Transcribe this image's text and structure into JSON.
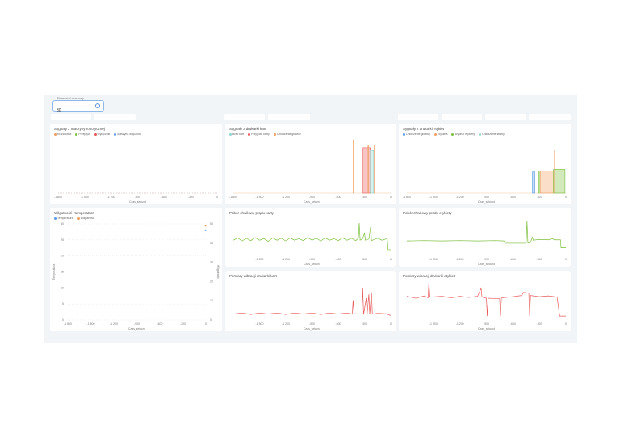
{
  "filter": {
    "label": "Przedział czasowy",
    "value": "30"
  },
  "colors": {
    "orange": "#f0a060",
    "green": "#7cbf3c",
    "red": "#e85a5a",
    "blue": "#5b9be6",
    "teal": "#8fd6d0"
  },
  "chart_data": [
    {
      "id": "c1",
      "type": "area",
      "title": "Sygnały z maszyny robotycznej",
      "xlabel": "Czas_sekund",
      "xlim": [
        -1800,
        0
      ],
      "ylim": [
        0,
        1
      ],
      "legend": [
        {
          "name": "Krańcówka",
          "color": "#f0a060"
        },
        {
          "name": "Przepływ",
          "color": "#7cbf3c"
        },
        {
          "name": "Wyłącznik",
          "color": "#e85a5a"
        },
        {
          "name": "Maszyna włączona",
          "color": "#5b9be6"
        }
      ],
      "intervals": []
    },
    {
      "id": "c2",
      "type": "area",
      "title": "Sygnały z drukarki kart",
      "xlabel": "Czas_sekund",
      "xlim": [
        -1800,
        0
      ],
      "ylim": [
        0,
        1
      ],
      "legend": [
        {
          "name": "Brak kart",
          "color": "#8fd6d0"
        },
        {
          "name": "Przyjęcie karty",
          "color": "#e85a5a"
        },
        {
          "name": "Chłodzenie głowicy",
          "color": "#f0a060"
        }
      ],
      "intervals": [
        {
          "series": 2,
          "start": -430,
          "end": -425,
          "value": 1
        },
        {
          "series": 1,
          "start": -317,
          "end": -233,
          "value": 0.85
        },
        {
          "series": 0,
          "start": -233,
          "end": -196,
          "value": 0.8
        },
        {
          "series": 2,
          "start": -260,
          "end": -256,
          "value": 0.9
        },
        {
          "series": 2,
          "start": -190,
          "end": -186,
          "value": 0.9
        }
      ]
    },
    {
      "id": "c3",
      "type": "area",
      "title": "Sygnały z drukarki etykiet",
      "xlabel": "Czas_sekund",
      "xlim": [
        -1800,
        0
      ],
      "ylim": [
        0,
        1
      ],
      "legend": [
        {
          "name": "Chłodzenie głowicy",
          "color": "#5b9be6"
        },
        {
          "name": "Etykieta",
          "color": "#f0a060"
        },
        {
          "name": "Wydruk etykiety",
          "color": "#7cbf3c"
        },
        {
          "name": "Chłodzenie taśmy",
          "color": "#8fd6d0"
        }
      ],
      "intervals": [
        {
          "series": 0,
          "start": -379,
          "end": -351,
          "value": 0.4
        },
        {
          "series": 2,
          "start": -310,
          "end": -300,
          "value": 0.4
        },
        {
          "series": 1,
          "start": -290,
          "end": -140,
          "value": 0.42
        },
        {
          "series": 2,
          "start": -140,
          "end": -10,
          "value": 0.45
        },
        {
          "series": 1,
          "start": -130,
          "end": -126,
          "value": 0.8
        }
      ]
    },
    {
      "id": "c4",
      "type": "scatter",
      "title": "Wilgotność i temperatura",
      "xlabel": "Czas_sekund",
      "ylabel": "Temperatura",
      "y2label": "Wilgotność",
      "xlim": [
        -1800,
        0
      ],
      "ylim": [
        0,
        30
      ],
      "y2lim": [
        0,
        50
      ],
      "yticks": [
        "0",
        "5",
        "10",
        "15",
        "20",
        "25",
        "30"
      ],
      "y2ticks": [
        "0",
        "10",
        "20",
        "30",
        "40",
        "50"
      ],
      "legend": [
        {
          "name": "Temperatura",
          "color": "#5b9be6"
        },
        {
          "name": "Wilgotność",
          "color": "#f0a060"
        }
      ],
      "points": [
        {
          "series": 0,
          "x": -5,
          "y": 28
        },
        {
          "series": 1,
          "x": -5,
          "y": 49
        }
      ]
    },
    {
      "id": "c5",
      "type": "line",
      "title": "Pobór chwilowy prądu karty",
      "xlabel": "Czas_sekund",
      "xlim": [
        -1800,
        0
      ],
      "ylim": [
        0,
        10
      ],
      "color": "#7cbf3c",
      "points": [
        [
          -1800,
          4
        ],
        [
          -1750,
          4.6
        ],
        [
          -1700,
          3.8
        ],
        [
          -1650,
          4.5
        ],
        [
          -1600,
          3.9
        ],
        [
          -1550,
          4.7
        ],
        [
          -1500,
          4
        ],
        [
          -1450,
          4.4
        ],
        [
          -1400,
          3.7
        ],
        [
          -1350,
          4.6
        ],
        [
          -1300,
          4
        ],
        [
          -1250,
          4.5
        ],
        [
          -1200,
          3.8
        ],
        [
          -1150,
          4.6
        ],
        [
          -1100,
          4
        ],
        [
          -1050,
          4.4
        ],
        [
          -1000,
          3.9
        ],
        [
          -950,
          4.7
        ],
        [
          -900,
          4
        ],
        [
          -850,
          4.5
        ],
        [
          -800,
          3.8
        ],
        [
          -750,
          4.6
        ],
        [
          -700,
          4
        ],
        [
          -650,
          4.4
        ],
        [
          -600,
          3.9
        ],
        [
          -550,
          4.6
        ],
        [
          -500,
          4
        ],
        [
          -450,
          4.5
        ],
        [
          -400,
          3.9
        ],
        [
          -370,
          4.5
        ],
        [
          -360,
          8.5
        ],
        [
          -350,
          4
        ],
        [
          -320,
          4.4
        ],
        [
          -300,
          6
        ],
        [
          -290,
          4
        ],
        [
          -250,
          4.3
        ],
        [
          -230,
          7.5
        ],
        [
          -220,
          3.9
        ],
        [
          -150,
          4.5
        ],
        [
          -100,
          4
        ],
        [
          -40,
          4.4
        ],
        [
          -30,
          1.5
        ],
        [
          0,
          1.5
        ]
      ]
    },
    {
      "id": "c6",
      "type": "line",
      "title": "Pobór chwilowy prądu etykiety",
      "xlabel": "Czas_sekund",
      "xlim": [
        -1800,
        0
      ],
      "ylim": [
        0,
        10
      ],
      "color": "#7cbf3c",
      "points": [
        [
          -1800,
          3.8
        ],
        [
          -1600,
          3.9
        ],
        [
          -1400,
          3.8
        ],
        [
          -1200,
          3.9
        ],
        [
          -1000,
          3.8
        ],
        [
          -800,
          3.9
        ],
        [
          -700,
          3.8
        ],
        [
          -690,
          3.2
        ],
        [
          -450,
          3.2
        ],
        [
          -440,
          9
        ],
        [
          -430,
          3.3
        ],
        [
          -400,
          3.4
        ],
        [
          -380,
          4.8
        ],
        [
          -370,
          4
        ],
        [
          -300,
          4.2
        ],
        [
          -200,
          4.1
        ],
        [
          -150,
          4.4
        ],
        [
          -130,
          4.1
        ],
        [
          -60,
          4.1
        ],
        [
          -55,
          2
        ],
        [
          0,
          2
        ]
      ]
    },
    {
      "id": "c7",
      "type": "line",
      "title": "Pomiary wibracji drukarki kart",
      "xlabel": "Czas_sekund",
      "xlim": [
        -1800,
        0
      ],
      "ylim": [
        0,
        10
      ],
      "color": "#e85a5a",
      "points": [
        [
          -1800,
          1.5
        ],
        [
          -1700,
          1.8
        ],
        [
          -1600,
          1.4
        ],
        [
          -1500,
          1.8
        ],
        [
          -1400,
          1.5
        ],
        [
          -1300,
          1.8
        ],
        [
          -1200,
          1.4
        ],
        [
          -1100,
          1.8
        ],
        [
          -1000,
          1.5
        ],
        [
          -900,
          1.8
        ],
        [
          -800,
          1.4
        ],
        [
          -700,
          1.8
        ],
        [
          -600,
          1.5
        ],
        [
          -500,
          1.8
        ],
        [
          -440,
          1.5
        ],
        [
          -430,
          5
        ],
        [
          -420,
          1.6
        ],
        [
          -330,
          1.5
        ],
        [
          -320,
          8
        ],
        [
          -310,
          1.4
        ],
        [
          -280,
          5.5
        ],
        [
          -270,
          1.5
        ],
        [
          -250,
          6.5
        ],
        [
          -240,
          1.4
        ],
        [
          -220,
          7
        ],
        [
          -210,
          1.5
        ],
        [
          -150,
          1.7
        ],
        [
          -50,
          1.6
        ],
        [
          -10,
          1.2
        ],
        [
          0,
          1.2
        ]
      ]
    },
    {
      "id": "c8",
      "type": "line",
      "title": "Pomiary wibracji drukarki etykiet",
      "xlabel": "Czas_sekund",
      "xlim": [
        -1800,
        0
      ],
      "ylim": [
        0,
        10
      ],
      "color": "#e85a5a",
      "points": [
        [
          -1800,
          6
        ],
        [
          -1700,
          5.5
        ],
        [
          -1600,
          6.1
        ],
        [
          -1560,
          5.6
        ],
        [
          -1550,
          9.5
        ],
        [
          -1540,
          5.8
        ],
        [
          -1400,
          6
        ],
        [
          -1300,
          5.6
        ],
        [
          -1200,
          6
        ],
        [
          -1100,
          5.7
        ],
        [
          -1000,
          6
        ],
        [
          -960,
          8
        ],
        [
          -950,
          5.8
        ],
        [
          -900,
          5.5
        ],
        [
          -890,
          1
        ],
        [
          -880,
          5.5
        ],
        [
          -750,
          5.4
        ],
        [
          -740,
          1
        ],
        [
          -730,
          5.6
        ],
        [
          -600,
          5.9
        ],
        [
          -500,
          6.2
        ],
        [
          -480,
          7
        ],
        [
          -420,
          6.8
        ],
        [
          -410,
          1
        ],
        [
          -400,
          6.2
        ],
        [
          -300,
          5.9
        ],
        [
          -200,
          6.1
        ],
        [
          -100,
          5.8
        ],
        [
          -70,
          1
        ],
        [
          0,
          1
        ]
      ]
    }
  ]
}
